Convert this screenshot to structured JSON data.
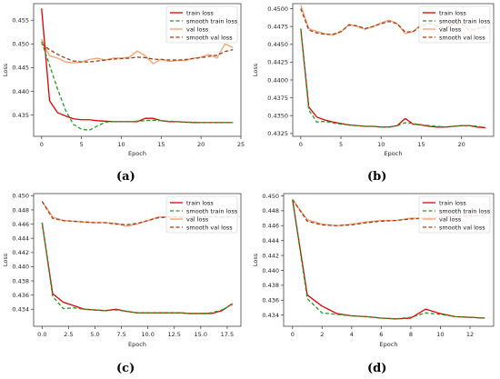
{
  "colors": {
    "train": "#dd0000",
    "smooth_train": "#229922",
    "val": "#f5a070",
    "smooth_val": "#a23a12",
    "axis": "#444444"
  },
  "chart_data": [
    {
      "caption": "(a)",
      "type": "line",
      "xlabel": "Epoch",
      "ylabel": "Loss",
      "xlim": [
        -1,
        25
      ],
      "ylim": [
        0.4305,
        0.4585
      ],
      "xticks": [
        0,
        5,
        10,
        15,
        20,
        25
      ],
      "yticks": [
        0.435,
        0.44,
        0.445,
        0.45,
        0.455
      ],
      "ytick_labels": [
        "0.435",
        "0.440",
        "0.445",
        "0.450",
        "0.455"
      ],
      "legend_position": "top-right",
      "series": [
        {
          "name": "train loss",
          "style": "solid",
          "color": "train",
          "x": [
            0,
            1,
            2,
            3,
            4,
            5,
            6,
            7,
            8,
            9,
            10,
            11,
            12,
            13,
            14,
            15,
            16,
            17,
            18,
            19,
            20,
            21,
            22,
            23,
            24
          ],
          "y": [
            0.4575,
            0.438,
            0.4355,
            0.4348,
            0.4342,
            0.434,
            0.434,
            0.4338,
            0.4337,
            0.4336,
            0.4336,
            0.4336,
            0.4336,
            0.4343,
            0.4343,
            0.4338,
            0.4336,
            0.4336,
            0.4335,
            0.4334,
            0.4334,
            0.4334,
            0.4334,
            0.4334,
            0.4334
          ]
        },
        {
          "name": "smooth train loss",
          "style": "dashed",
          "color": "smooth_train",
          "x": [
            0,
            1,
            2,
            3,
            4,
            5,
            6,
            7,
            8,
            9,
            10,
            11,
            12,
            13,
            14,
            15,
            16,
            17,
            18,
            19,
            20,
            21,
            22,
            23,
            24
          ],
          "y": [
            0.4505,
            0.4455,
            0.4405,
            0.436,
            0.433,
            0.432,
            0.4318,
            0.4327,
            0.4335,
            0.4336,
            0.4336,
            0.4336,
            0.4337,
            0.4338,
            0.4339,
            0.4338,
            0.4337,
            0.4336,
            0.4335,
            0.4335,
            0.4334,
            0.4334,
            0.4334,
            0.4334,
            0.4334
          ]
        },
        {
          "name": "val loss",
          "style": "solid",
          "color": "val",
          "x": [
            0,
            1,
            2,
            3,
            4,
            5,
            6,
            7,
            8,
            9,
            10,
            11,
            12,
            13,
            14,
            15,
            16,
            17,
            18,
            19,
            20,
            21,
            22,
            23,
            24
          ],
          "y": [
            0.451,
            0.4475,
            0.447,
            0.4462,
            0.446,
            0.4462,
            0.4467,
            0.447,
            0.4466,
            0.447,
            0.447,
            0.4472,
            0.4485,
            0.4475,
            0.4458,
            0.4468,
            0.4463,
            0.4465,
            0.4465,
            0.447,
            0.4472,
            0.4478,
            0.447,
            0.45,
            0.4492
          ]
        },
        {
          "name": "smooth val loss",
          "style": "dashed",
          "color": "smooth_val",
          "x": [
            0,
            1,
            2,
            3,
            4,
            5,
            6,
            7,
            8,
            9,
            10,
            11,
            12,
            13,
            14,
            15,
            16,
            17,
            18,
            19,
            20,
            21,
            22,
            23,
            24
          ],
          "y": [
            0.45,
            0.4488,
            0.4478,
            0.447,
            0.4464,
            0.4462,
            0.4462,
            0.4464,
            0.4466,
            0.4468,
            0.4469,
            0.447,
            0.4472,
            0.4471,
            0.4468,
            0.4467,
            0.4466,
            0.4466,
            0.4467,
            0.4469,
            0.4471,
            0.4474,
            0.4476,
            0.4484,
            0.4488
          ]
        }
      ]
    },
    {
      "caption": "(b)",
      "type": "line",
      "xlabel": "Epoch",
      "ylabel": "Loss",
      "xlim": [
        -1,
        24
      ],
      "ylim": [
        0.4321,
        0.4507
      ],
      "xticks": [
        0,
        5,
        10,
        15,
        20
      ],
      "yticks": [
        0.4325,
        0.435,
        0.4375,
        0.44,
        0.4425,
        0.445,
        0.4475,
        0.45
      ],
      "ytick_labels": [
        "0.4325",
        "0.4350",
        "0.4375",
        "0.4400",
        "0.4425",
        "0.4450",
        "0.4475",
        "0.4500"
      ],
      "legend_position": "top-right",
      "series": [
        {
          "name": "train loss",
          "style": "solid",
          "color": "train",
          "x": [
            0,
            1,
            2,
            3,
            4,
            5,
            6,
            7,
            8,
            9,
            10,
            11,
            12,
            13,
            14,
            15,
            16,
            17,
            18,
            19,
            20,
            21,
            22,
            23
          ],
          "y": [
            0.4472,
            0.4362,
            0.4348,
            0.4344,
            0.4341,
            0.4339,
            0.4337,
            0.4336,
            0.4335,
            0.4335,
            0.4334,
            0.4334,
            0.4336,
            0.4346,
            0.4338,
            0.4337,
            0.4335,
            0.4334,
            0.4334,
            0.4335,
            0.4336,
            0.4336,
            0.4334,
            0.4333
          ]
        },
        {
          "name": "smooth train loss",
          "style": "dashed",
          "color": "smooth_train",
          "x": [
            0,
            1,
            2,
            3,
            4,
            5,
            6,
            7,
            8,
            9,
            10,
            11,
            12,
            13,
            14,
            15,
            16,
            17,
            18,
            19,
            20,
            21,
            22,
            23
          ],
          "y": [
            0.4472,
            0.4358,
            0.4341,
            0.4342,
            0.434,
            0.4338,
            0.4337,
            0.4336,
            0.4335,
            0.4335,
            0.4334,
            0.4334,
            0.4336,
            0.434,
            0.4339,
            0.4337,
            0.4336,
            0.4335,
            0.4334,
            0.4335,
            0.4336,
            0.4336,
            0.4335,
            0.4333
          ]
        },
        {
          "name": "val loss",
          "style": "solid",
          "color": "val",
          "x": [
            0,
            1,
            2,
            3,
            4,
            5,
            6,
            7,
            8,
            9,
            10,
            11,
            12,
            13,
            14,
            15,
            16,
            17,
            18,
            19,
            20,
            21,
            22,
            23
          ],
          "y": [
            0.4505,
            0.4472,
            0.4468,
            0.4465,
            0.4463,
            0.4467,
            0.4478,
            0.4475,
            0.4471,
            0.4475,
            0.448,
            0.4484,
            0.4479,
            0.4465,
            0.4468,
            0.4478,
            0.448,
            0.4476,
            0.447,
            0.4482,
            0.448,
            0.4468,
            0.4472,
            0.4474
          ]
        },
        {
          "name": "smooth val loss",
          "style": "dashed",
          "color": "smooth_val",
          "x": [
            0,
            1,
            2,
            3,
            4,
            5,
            6,
            7,
            8,
            9,
            10,
            11,
            12,
            13,
            14,
            15,
            16,
            17,
            18,
            19,
            20,
            21,
            22,
            23
          ],
          "y": [
            0.45,
            0.447,
            0.4466,
            0.4464,
            0.4464,
            0.4468,
            0.4477,
            0.4476,
            0.4472,
            0.4475,
            0.4479,
            0.4482,
            0.4479,
            0.4467,
            0.4468,
            0.4476,
            0.4479,
            0.4476,
            0.4472,
            0.4479,
            0.4479,
            0.447,
            0.4472,
            0.4474
          ]
        }
      ]
    },
    {
      "caption": "(c)",
      "type": "line",
      "xlabel": "Epoch",
      "ylabel": "Loss",
      "xlim": [
        -0.8,
        18.8
      ],
      "ylim": [
        0.4316,
        0.4503
      ],
      "xticks": [
        0.0,
        2.5,
        5.0,
        7.5,
        10.0,
        12.5,
        15.0,
        17.5
      ],
      "xtick_labels": [
        "0.0",
        "2.5",
        "5.0",
        "7.5",
        "10.0",
        "12.5",
        "15.0",
        "17.5"
      ],
      "yticks": [
        0.434,
        0.436,
        0.438,
        0.44,
        0.442,
        0.444,
        0.446,
        0.448,
        0.45
      ],
      "ytick_labels": [
        "0.434",
        "0.436",
        "0.438",
        "0.440",
        "0.442",
        "0.444",
        "0.446",
        "0.448",
        "0.450"
      ],
      "legend_position": "top-right",
      "series": [
        {
          "name": "train loss",
          "style": "solid",
          "color": "train",
          "x": [
            0,
            1,
            2,
            3,
            4,
            5,
            6,
            7,
            8,
            9,
            10,
            11,
            12,
            13,
            14,
            15,
            16,
            17,
            18
          ],
          "y": [
            0.4462,
            0.4362,
            0.435,
            0.4345,
            0.434,
            0.4339,
            0.4338,
            0.434,
            0.4337,
            0.4335,
            0.4335,
            0.4335,
            0.4335,
            0.4335,
            0.4334,
            0.4334,
            0.4334,
            0.4338,
            0.4348
          ]
        },
        {
          "name": "smooth train loss",
          "style": "dashed",
          "color": "smooth_train",
          "x": [
            0,
            1,
            2,
            3,
            4,
            5,
            6,
            7,
            8,
            9,
            10,
            11,
            12,
            13,
            14,
            15,
            16,
            17,
            18
          ],
          "y": [
            0.4462,
            0.4358,
            0.4341,
            0.4342,
            0.434,
            0.4339,
            0.4338,
            0.4339,
            0.4337,
            0.4335,
            0.4335,
            0.4335,
            0.4335,
            0.4335,
            0.4334,
            0.4334,
            0.4335,
            0.4339,
            0.4347
          ]
        },
        {
          "name": "val loss",
          "style": "solid",
          "color": "val",
          "x": [
            0,
            1,
            2,
            3,
            4,
            5,
            6,
            7,
            8,
            9,
            10,
            11,
            12,
            13,
            14,
            15,
            16,
            17,
            18
          ],
          "y": [
            0.4492,
            0.447,
            0.4465,
            0.4464,
            0.4463,
            0.4462,
            0.4462,
            0.4461,
            0.4457,
            0.446,
            0.4465,
            0.447,
            0.447,
            0.447,
            0.447,
            0.447,
            0.447,
            0.447,
            0.447
          ]
        },
        {
          "name": "smooth val loss",
          "style": "dashed",
          "color": "smooth_val",
          "x": [
            0,
            1,
            2,
            3,
            4,
            5,
            6,
            7,
            8,
            9,
            10,
            11,
            12,
            13,
            14,
            15,
            16,
            17,
            18
          ],
          "y": [
            0.4492,
            0.4468,
            0.4465,
            0.4464,
            0.4463,
            0.4462,
            0.4462,
            0.446,
            0.4459,
            0.4461,
            0.4465,
            0.4469,
            0.447,
            0.447,
            0.447,
            0.447,
            0.447,
            0.447,
            0.447
          ]
        }
      ]
    },
    {
      "caption": "(d)",
      "type": "line",
      "xlabel": "Epoch",
      "ylabel": "Loss",
      "xlim": [
        -0.6,
        13.6
      ],
      "ylim": [
        0.4325,
        0.4503
      ],
      "xticks": [
        0,
        2,
        4,
        6,
        8,
        10,
        12
      ],
      "yticks": [
        0.434,
        0.436,
        0.438,
        0.44,
        0.442,
        0.444,
        0.446,
        0.448,
        0.45
      ],
      "ytick_labels": [
        "0.434",
        "0.436",
        "0.438",
        "0.440",
        "0.442",
        "0.444",
        "0.446",
        "0.448",
        "0.450"
      ],
      "legend_position": "top-right",
      "series": [
        {
          "name": "train loss",
          "style": "solid",
          "color": "train",
          "x": [
            0,
            1,
            2,
            3,
            4,
            5,
            6,
            7,
            8,
            9,
            10,
            11,
            12,
            13
          ],
          "y": [
            0.4495,
            0.4367,
            0.4352,
            0.4342,
            0.4339,
            0.4338,
            0.4336,
            0.4335,
            0.4336,
            0.4348,
            0.4342,
            0.4338,
            0.4337,
            0.4336
          ]
        },
        {
          "name": "smooth train loss",
          "style": "dashed",
          "color": "smooth_train",
          "x": [
            0,
            1,
            2,
            3,
            4,
            5,
            6,
            7,
            8,
            9,
            10,
            11,
            12,
            13
          ],
          "y": [
            0.4495,
            0.4362,
            0.4343,
            0.4341,
            0.4339,
            0.4338,
            0.4336,
            0.4335,
            0.4337,
            0.4343,
            0.4341,
            0.4338,
            0.4337,
            0.4336
          ]
        },
        {
          "name": "val loss",
          "style": "solid",
          "color": "val",
          "x": [
            0,
            1,
            2,
            3,
            4,
            5,
            6,
            7,
            8,
            9,
            10,
            11,
            12,
            13
          ],
          "y": [
            0.4495,
            0.4468,
            0.4462,
            0.446,
            0.4462,
            0.4465,
            0.4467,
            0.4467,
            0.447,
            0.447,
            0.4472,
            0.4473,
            0.4473,
            0.4474
          ]
        },
        {
          "name": "smooth val loss",
          "style": "dashed",
          "color": "smooth_val",
          "x": [
            0,
            1,
            2,
            3,
            4,
            5,
            6,
            7,
            8,
            9,
            10,
            11,
            12,
            13
          ],
          "y": [
            0.4495,
            0.4466,
            0.4461,
            0.446,
            0.4461,
            0.4464,
            0.4466,
            0.4467,
            0.4469,
            0.447,
            0.4471,
            0.4472,
            0.4473,
            0.4474
          ]
        }
      ]
    }
  ]
}
